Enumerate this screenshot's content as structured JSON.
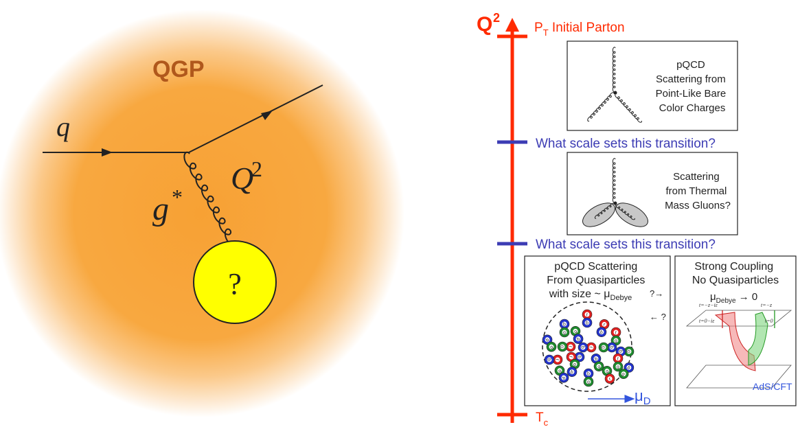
{
  "left_panel": {
    "medium_label": "QGP",
    "quark_label": "q",
    "gluon_label": "g",
    "gluon_superscript": "*",
    "momentum_label": "Q",
    "momentum_superscript": "2",
    "unknown_label": "?"
  },
  "right_panel": {
    "axis_label": "Q",
    "axis_superscript": "2",
    "top_label_main": "P",
    "top_label_sub": "T",
    "top_label_rest": " Initial Parton",
    "bottom_label_main": "T",
    "bottom_label_sub": "c",
    "transition_question_1": "What scale sets this transition?",
    "transition_question_2": "What scale sets this transition?",
    "box1_lines": [
      "pQCD",
      "Scattering from",
      "Point-Like Bare",
      "Color Charges"
    ],
    "box2_lines": [
      "Scattering",
      "from Thermal",
      "Mass Gluons?"
    ],
    "box3_lines": [
      "pQCD Scattering",
      "From Quasiparticles",
      "with size ~ μ"
    ],
    "box3_sub": "Debye",
    "box3_arrow_label": "μ",
    "box3_arrow_sub": "D",
    "box4_lines": [
      "Strong Coupling",
      "No Quasiparticles"
    ],
    "box4_mu": "μ",
    "box4_mu_sub": "Debye",
    "box4_mu_tail": " → 0",
    "box4_ads_label": "AdS/CFT",
    "box4_eq_top_left": "t=−z−iε",
    "box4_eq_mid_left": "t=0−iε",
    "box4_eq_top_right": "t=−z",
    "box4_eq_mid_right": "t=0",
    "between_arrow_right": "?→",
    "between_arrow_left": "← ?",
    "quasiparticles": [
      {
        "top": "r",
        "bot": "b"
      },
      {
        "top": "b",
        "bot": "g"
      },
      {
        "top": "g",
        "bot": "b"
      },
      {
        "top": "r",
        "bot": "b"
      },
      {
        "top": "r",
        "bot": "g"
      },
      {
        "top": "b",
        "bot": "g"
      },
      {
        "top": "r",
        "bot": "g"
      },
      {
        "top": "r",
        "bot": "b"
      },
      {
        "top": "b",
        "bot": "g"
      },
      {
        "top": "g",
        "bot": "b"
      },
      {
        "top": "r",
        "bot": "b"
      },
      {
        "top": "b",
        "bot": "r"
      },
      {
        "top": "b",
        "bot": "g"
      },
      {
        "top": "r",
        "bot": "g"
      },
      {
        "top": "g",
        "bot": "b"
      },
      {
        "top": "b",
        "bot": "g"
      },
      {
        "top": "g",
        "bot": "r"
      },
      {
        "top": "b",
        "bot": "g"
      },
      {
        "top": "g",
        "bot": "b"
      }
    ]
  },
  "colors": {
    "axis_red": "#ff2a00",
    "transition_blue": "#3c3cb4",
    "qgp_orange": "#f7a134",
    "qgp_label": "#b0581c",
    "unknown_yellow": "#ffff00",
    "quark_red": "#e02020",
    "quark_blue": "#2233cc",
    "quark_green": "#1e8a2e"
  }
}
